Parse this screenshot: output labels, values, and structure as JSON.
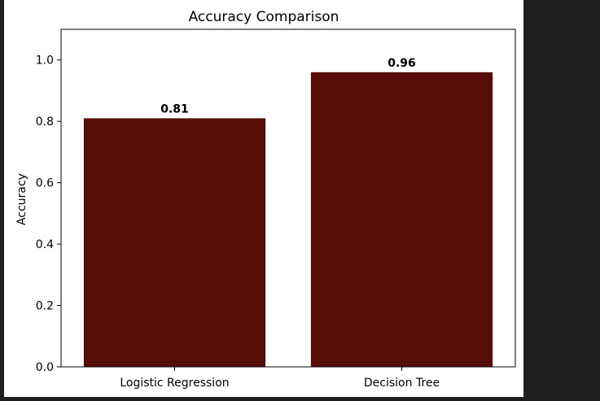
{
  "chart_data": {
    "type": "bar",
    "title": "Accuracy Comparison",
    "xlabel": "",
    "ylabel": "Accuracy",
    "categories": [
      "Logistic Regression",
      "Decision Tree"
    ],
    "values": [
      0.81,
      0.96
    ],
    "value_labels": [
      "0.81",
      "0.96"
    ],
    "ylim": [
      0,
      1.1
    ],
    "yticks": [
      0.0,
      0.2,
      0.4,
      0.6,
      0.8,
      1.0
    ],
    "ytick_labels": [
      "0.0",
      "0.2",
      "0.4",
      "0.6",
      "0.8",
      "1.0"
    ],
    "grid": false,
    "legend": "none",
    "bar_color": "#560c07"
  },
  "colors": {
    "outer_background": "#1f1f1f",
    "figure_background": "#ffffff"
  }
}
